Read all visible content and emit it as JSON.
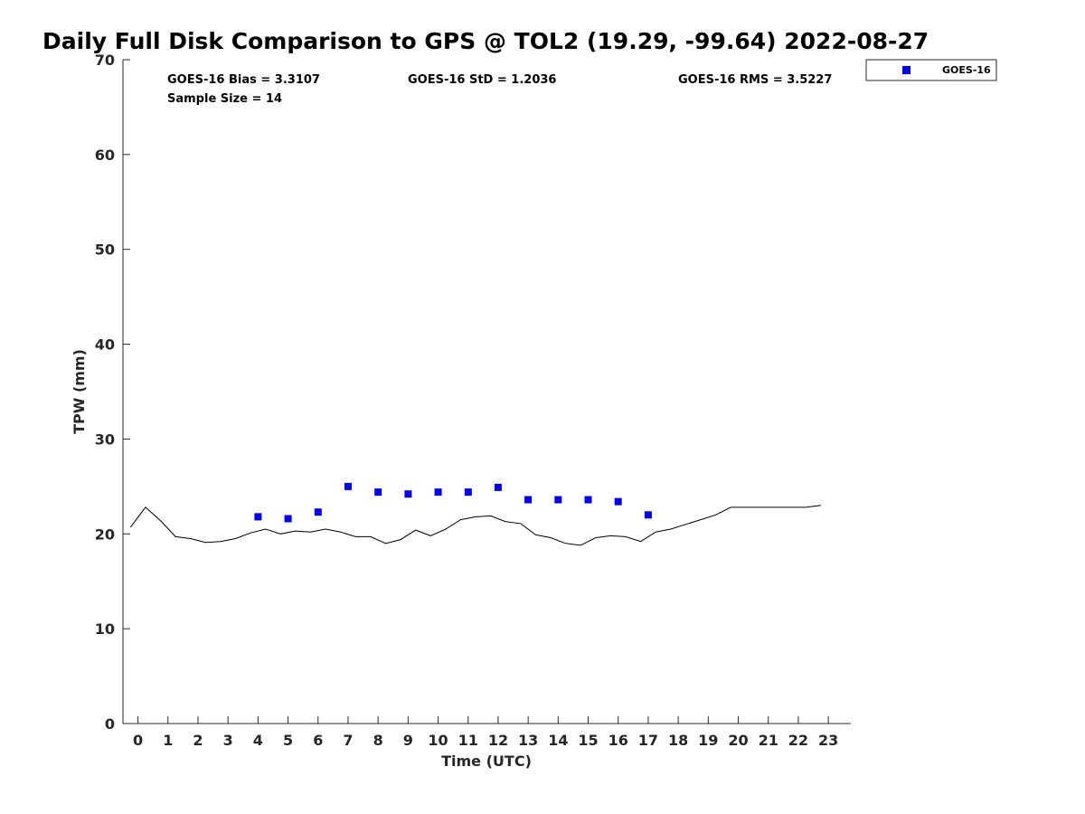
{
  "chart_data": {
    "type": "scatter",
    "title": "Daily Full Disk Comparison to GPS @ TOL2 (19.29, -99.64) 2022-08-27",
    "xlabel": "Time (UTC)",
    "ylabel": "TPW (mm)",
    "xlim": [
      -0.5,
      23.75
    ],
    "ylim": [
      0,
      70
    ],
    "xticks": [
      0,
      1,
      2,
      3,
      4,
      5,
      6,
      7,
      8,
      9,
      10,
      11,
      12,
      13,
      14,
      15,
      16,
      17,
      18,
      19,
      20,
      21,
      22,
      23
    ],
    "yticks": [
      0,
      10,
      20,
      30,
      40,
      50,
      60,
      70
    ],
    "grid": false,
    "legend": {
      "placement": "top-right",
      "entries": [
        "GOES-16"
      ]
    },
    "stats": {
      "bias": "GOES-16 Bias = 3.3107",
      "std": "GOES-16 StD = 1.2036",
      "rms": "GOES-16 RMS = 3.5227",
      "sample": "Sample Size = 14"
    },
    "series": [
      {
        "name": "GOES-16",
        "kind": "scatter",
        "marker": "square",
        "color": "#0000ee",
        "x": [
          4,
          5,
          6,
          7,
          8,
          9,
          10,
          11,
          12,
          13,
          14,
          15,
          16,
          17
        ],
        "y": [
          21.8,
          21.6,
          22.3,
          25.0,
          24.4,
          24.2,
          24.4,
          24.4,
          24.9,
          23.6,
          23.6,
          23.6,
          23.4,
          22.0
        ]
      },
      {
        "kind": "line",
        "color": "#000000",
        "x": [
          -0.25,
          0.25,
          0.75,
          1.25,
          1.75,
          2.25,
          2.75,
          3.25,
          3.75,
          4.25,
          4.75,
          5.25,
          5.75,
          6.25,
          6.75,
          7.25,
          7.75,
          8.25,
          8.75,
          9.25,
          9.75,
          10.25,
          10.75,
          11.25,
          11.75,
          12.25,
          12.75,
          13.25,
          13.75,
          14.25,
          14.75,
          15.25,
          15.75,
          16.25,
          16.75,
          17.25,
          17.75,
          18.25,
          18.75,
          19.25,
          19.75,
          20.25,
          20.75,
          21.25,
          21.75,
          22.25,
          22.75
        ],
        "y": [
          20.7,
          22.8,
          21.4,
          19.7,
          19.5,
          19.1,
          19.2,
          19.5,
          20.1,
          20.5,
          20.0,
          20.3,
          20.2,
          20.5,
          20.2,
          19.7,
          19.7,
          19.0,
          19.4,
          20.4,
          19.8,
          20.5,
          21.5,
          21.8,
          21.9,
          21.3,
          21.1,
          19.9,
          19.6,
          19.0,
          18.8,
          19.6,
          19.8,
          19.7,
          19.2,
          20.2,
          20.5,
          21.0,
          21.5,
          22.0,
          22.8,
          22.8,
          22.8,
          22.8,
          22.8,
          22.8,
          23.0
        ]
      }
    ]
  }
}
